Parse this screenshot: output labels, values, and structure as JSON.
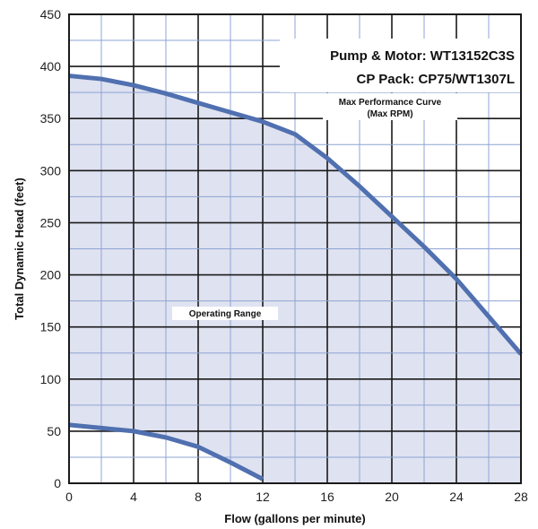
{
  "chart_data": {
    "type": "area",
    "xlabel": "Flow (gallons per minute)",
    "ylabel": "Total Dynamic Head (feet)",
    "xlim": [
      0,
      28
    ],
    "ylim": [
      0,
      450
    ],
    "x_ticks": [
      "0",
      "4",
      "8",
      "12",
      "16",
      "20",
      "24",
      "28"
    ],
    "y_ticks": [
      "0",
      "50",
      "100",
      "150",
      "200",
      "250",
      "300",
      "350",
      "400",
      "450"
    ],
    "grid": true,
    "annotations": {
      "pump_motor": "Pump & Motor: WT13152C3S",
      "cp_pack": "CP Pack: CP75/WT1307L",
      "curve_label_1": "Max Performance Curve",
      "curve_label_2": "(Max RPM)",
      "region_label": "Operating Range"
    },
    "series": [
      {
        "x": [
          0,
          2,
          4,
          6,
          8,
          10,
          12,
          14,
          16,
          18,
          20,
          22,
          24,
          26,
          28
        ],
        "y": [
          391,
          388,
          382,
          374,
          365,
          356,
          347,
          335,
          312,
          285,
          256,
          227,
          196,
          160,
          124
        ]
      },
      {
        "x": [
          0,
          2,
          4,
          6,
          8,
          10,
          12
        ],
        "y": [
          56,
          53,
          50,
          44,
          35,
          20,
          4
        ]
      }
    ],
    "colors": {
      "curve": "#5070b0",
      "fill": "#dfe2f0",
      "grid_minor": "#8ea4d4",
      "grid_major": "#1a1a1a"
    }
  }
}
